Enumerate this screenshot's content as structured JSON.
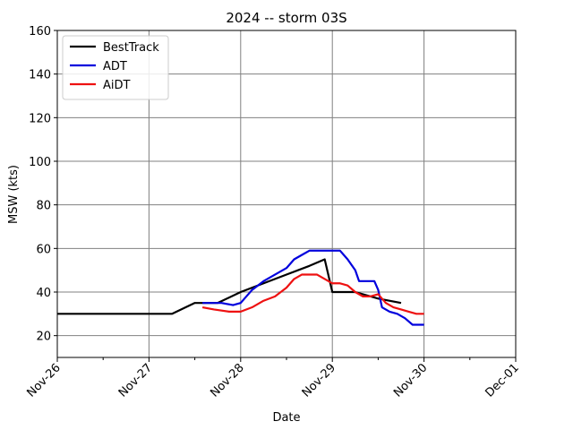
{
  "chart_data": {
    "type": "line",
    "title": "2024 -- storm 03S",
    "xlabel": "Date",
    "ylabel": "MSW (kts)",
    "x_tick_labels": [
      "Nov-26",
      "Nov-27",
      "Nov-28",
      "Nov-29",
      "Nov-30",
      "Dec-01"
    ],
    "x_tick_dates": [
      "2024-11-26",
      "2024-11-27",
      "2024-11-28",
      "2024-11-29",
      "2024-11-30",
      "2024-12-01"
    ],
    "xlim": [
      "2024-11-26T00:00",
      "2024-12-01T00:00"
    ],
    "ylim": [
      10,
      160
    ],
    "y_ticks": [
      20,
      40,
      60,
      80,
      100,
      120,
      140,
      160
    ],
    "grid": true,
    "legend_position": "top-left",
    "series": [
      {
        "name": "BestTrack",
        "color": "#000000",
        "points": [
          [
            "2024-11-26T00:00",
            30
          ],
          [
            "2024-11-27T06:00",
            30
          ],
          [
            "2024-11-27T12:00",
            35
          ],
          [
            "2024-11-27T18:00",
            35
          ],
          [
            "2024-11-28T00:00",
            40
          ],
          [
            "2024-11-28T06:00",
            44
          ],
          [
            "2024-11-28T12:00",
            48
          ],
          [
            "2024-11-28T18:00",
            52
          ],
          [
            "2024-11-28T22:00",
            55
          ],
          [
            "2024-11-29T00:00",
            40
          ],
          [
            "2024-11-29T06:00",
            40
          ],
          [
            "2024-11-29T12:00",
            37
          ],
          [
            "2024-11-29T18:00",
            35
          ]
        ]
      },
      {
        "name": "ADT",
        "color": "#0000dd",
        "points": [
          [
            "2024-11-27T14:00",
            35
          ],
          [
            "2024-11-27T19:00",
            35
          ],
          [
            "2024-11-27T22:00",
            34
          ],
          [
            "2024-11-28T00:00",
            35
          ],
          [
            "2024-11-28T03:00",
            41
          ],
          [
            "2024-11-28T06:00",
            45
          ],
          [
            "2024-11-28T08:00",
            47
          ],
          [
            "2024-11-28T10:00",
            49
          ],
          [
            "2024-11-28T12:00",
            51
          ],
          [
            "2024-11-28T14:00",
            55
          ],
          [
            "2024-11-28T16:00",
            57
          ],
          [
            "2024-11-28T18:00",
            59
          ],
          [
            "2024-11-29T00:00",
            59
          ],
          [
            "2024-11-29T02:00",
            59
          ],
          [
            "2024-11-29T04:00",
            55
          ],
          [
            "2024-11-29T06:00",
            50
          ],
          [
            "2024-11-29T07:00",
            45
          ],
          [
            "2024-11-29T10:00",
            45
          ],
          [
            "2024-11-29T11:00",
            45
          ],
          [
            "2024-11-29T12:00",
            41
          ],
          [
            "2024-11-29T13:00",
            33
          ],
          [
            "2024-11-29T15:00",
            31
          ],
          [
            "2024-11-29T17:00",
            30
          ],
          [
            "2024-11-29T19:00",
            28
          ],
          [
            "2024-11-29T21:00",
            25
          ],
          [
            "2024-11-30T00:00",
            25
          ]
        ]
      },
      {
        "name": "AiDT",
        "color": "#ee1111",
        "points": [
          [
            "2024-11-27T14:00",
            33
          ],
          [
            "2024-11-27T17:00",
            32
          ],
          [
            "2024-11-27T21:00",
            31
          ],
          [
            "2024-11-28T00:00",
            31
          ],
          [
            "2024-11-28T03:00",
            33
          ],
          [
            "2024-11-28T06:00",
            36
          ],
          [
            "2024-11-28T09:00",
            38
          ],
          [
            "2024-11-28T12:00",
            42
          ],
          [
            "2024-11-28T14:00",
            46
          ],
          [
            "2024-11-28T16:00",
            48
          ],
          [
            "2024-11-28T20:00",
            48
          ],
          [
            "2024-11-28T22:00",
            46
          ],
          [
            "2024-11-29T00:00",
            44
          ],
          [
            "2024-11-29T02:00",
            44
          ],
          [
            "2024-11-29T04:00",
            43
          ],
          [
            "2024-11-29T06:00",
            40
          ],
          [
            "2024-11-29T08:00",
            38
          ],
          [
            "2024-11-29T10:00",
            38
          ],
          [
            "2024-11-29T12:00",
            39
          ],
          [
            "2024-11-29T14:00",
            35
          ],
          [
            "2024-11-29T16:00",
            33
          ],
          [
            "2024-11-29T18:00",
            32
          ],
          [
            "2024-11-29T20:00",
            31
          ],
          [
            "2024-11-29T22:00",
            30
          ],
          [
            "2024-11-30T00:00",
            30
          ]
        ]
      }
    ]
  }
}
